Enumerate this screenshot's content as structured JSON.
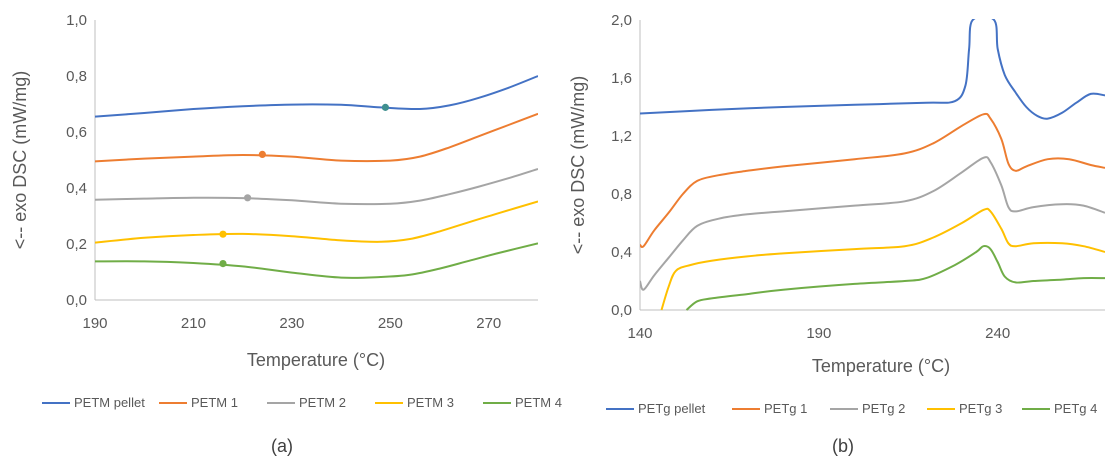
{
  "chart_data": [
    {
      "type": "line",
      "caption": "(a)",
      "xlabel": "Temperature (°C)",
      "ylabel": "<-- exo    DSC (mW/mg)",
      "xlim": [
        190,
        280
      ],
      "ylim": [
        0.0,
        1.0
      ],
      "xticks": [
        "190",
        "210",
        "230",
        "250",
        "270"
      ],
      "yticks": [
        "0,0",
        "0,2",
        "0,4",
        "0,6",
        "0,8",
        "1,0"
      ],
      "legend_position": "bottom",
      "series": [
        {
          "name": "PETM pellet",
          "color": "#4472C4",
          "points": [
            [
              190,
              0.655
            ],
            [
              200,
              0.668
            ],
            [
              210,
              0.682
            ],
            [
              220,
              0.692
            ],
            [
              230,
              0.698
            ],
            [
              240,
              0.697
            ],
            [
              248,
              0.688
            ],
            [
              256,
              0.682
            ],
            [
              262,
              0.695
            ],
            [
              268,
              0.722
            ],
            [
              274,
              0.758
            ],
            [
              280,
              0.8
            ]
          ],
          "marker": [
            249,
            0.688
          ]
        },
        {
          "name": "PETM 1",
          "color": "#ED7D31",
          "points": [
            [
              190,
              0.495
            ],
            [
              200,
              0.505
            ],
            [
              210,
              0.512
            ],
            [
              220,
              0.518
            ],
            [
              230,
              0.512
            ],
            [
              240,
              0.498
            ],
            [
              250,
              0.498
            ],
            [
              256,
              0.512
            ],
            [
              262,
              0.545
            ],
            [
              268,
              0.585
            ],
            [
              274,
              0.625
            ],
            [
              280,
              0.665
            ]
          ],
          "marker": [
            224,
            0.52
          ]
        },
        {
          "name": "PETM 2",
          "color": "#A5A5A5",
          "points": [
            [
              190,
              0.358
            ],
            [
              200,
              0.362
            ],
            [
              210,
              0.365
            ],
            [
              220,
              0.364
            ],
            [
              230,
              0.356
            ],
            [
              240,
              0.344
            ],
            [
              250,
              0.344
            ],
            [
              256,
              0.355
            ],
            [
              262,
              0.378
            ],
            [
              268,
              0.405
            ],
            [
              274,
              0.435
            ],
            [
              280,
              0.468
            ]
          ],
          "marker": [
            221,
            0.365
          ]
        },
        {
          "name": "PETM 3",
          "color": "#FFC000",
          "points": [
            [
              190,
              0.205
            ],
            [
              200,
              0.222
            ],
            [
              210,
              0.232
            ],
            [
              220,
              0.236
            ],
            [
              230,
              0.228
            ],
            [
              240,
              0.213
            ],
            [
              248,
              0.208
            ],
            [
              254,
              0.218
            ],
            [
              260,
              0.245
            ],
            [
              266,
              0.278
            ],
            [
              272,
              0.31
            ],
            [
              280,
              0.352
            ]
          ],
          "marker": [
            216,
            0.235
          ]
        },
        {
          "name": "PETM 4",
          "color": "#70AD47",
          "points": [
            [
              190,
              0.138
            ],
            [
              200,
              0.138
            ],
            [
              210,
              0.132
            ],
            [
              220,
              0.12
            ],
            [
              230,
              0.098
            ],
            [
              240,
              0.08
            ],
            [
              248,
              0.082
            ],
            [
              254,
              0.09
            ],
            [
              260,
              0.112
            ],
            [
              266,
              0.14
            ],
            [
              272,
              0.168
            ],
            [
              280,
              0.202
            ]
          ],
          "marker": [
            216,
            0.13
          ]
        }
      ]
    },
    {
      "type": "line",
      "caption": "(b)",
      "xlabel": "Temperature (°C)",
      "ylabel": "<-- exo    DSC (mW/mg)",
      "xlim": [
        140,
        270
      ],
      "ylim": [
        0.0,
        2.0
      ],
      "xticks": [
        "140",
        "190",
        "240"
      ],
      "yticks": [
        "0,0",
        "0,4",
        "0,8",
        "1,2",
        "1,6",
        "2,0"
      ],
      "legend_position": "bottom",
      "series": [
        {
          "name": "PETg pellet",
          "color": "#4472C4",
          "points": [
            [
              140,
              1.355
            ],
            [
              160,
              1.38
            ],
            [
              180,
              1.4
            ],
            [
              200,
              1.415
            ],
            [
              220,
              1.43
            ],
            [
              228,
              1.44
            ],
            [
              231,
              1.55
            ],
            [
              232,
              1.8
            ],
            [
              233,
              2.0
            ],
            [
              239,
              2.0
            ],
            [
              240,
              1.8
            ],
            [
              242,
              1.62
            ],
            [
              245,
              1.5
            ],
            [
              248,
              1.4
            ],
            [
              251,
              1.34
            ],
            [
              254,
              1.32
            ],
            [
              258,
              1.36
            ],
            [
              262,
              1.43
            ],
            [
              266,
              1.49
            ],
            [
              270,
              1.48
            ]
          ]
        },
        {
          "name": "PETg 1",
          "color": "#ED7D31",
          "points": [
            [
              140,
              0.45
            ],
            [
              141,
              0.44
            ],
            [
              144,
              0.55
            ],
            [
              148,
              0.67
            ],
            [
              152,
              0.8
            ],
            [
              156,
              0.89
            ],
            [
              162,
              0.93
            ],
            [
              170,
              0.96
            ],
            [
              180,
              0.99
            ],
            [
              200,
              1.04
            ],
            [
              214,
              1.08
            ],
            [
              222,
              1.15
            ],
            [
              230,
              1.27
            ],
            [
              236,
              1.35
            ],
            [
              238,
              1.32
            ],
            [
              241,
              1.18
            ],
            [
              243,
              1.01
            ],
            [
              245,
              0.96
            ],
            [
              248,
              0.99
            ],
            [
              254,
              1.04
            ],
            [
              260,
              1.04
            ],
            [
              266,
              1.0
            ],
            [
              270,
              0.98
            ]
          ]
        },
        {
          "name": "PETg 2",
          "color": "#A5A5A5",
          "points": [
            [
              140,
              0.2
            ],
            [
              141,
              0.14
            ],
            [
              144,
              0.24
            ],
            [
              148,
              0.36
            ],
            [
              152,
              0.48
            ],
            [
              156,
              0.58
            ],
            [
              162,
              0.63
            ],
            [
              170,
              0.66
            ],
            [
              180,
              0.68
            ],
            [
              200,
              0.72
            ],
            [
              214,
              0.75
            ],
            [
              222,
              0.82
            ],
            [
              230,
              0.95
            ],
            [
              236,
              1.05
            ],
            [
              238,
              1.02
            ],
            [
              241,
              0.86
            ],
            [
              243,
              0.71
            ],
            [
              245,
              0.68
            ],
            [
              250,
              0.71
            ],
            [
              258,
              0.73
            ],
            [
              264,
              0.72
            ],
            [
              270,
              0.67
            ]
          ]
        },
        {
          "name": "PETg 3",
          "color": "#FFC000",
          "points": [
            [
              146,
              0.0
            ],
            [
              148,
              0.16
            ],
            [
              150,
              0.27
            ],
            [
              154,
              0.31
            ],
            [
              160,
              0.34
            ],
            [
              170,
              0.37
            ],
            [
              180,
              0.39
            ],
            [
              200,
              0.42
            ],
            [
              214,
              0.44
            ],
            [
              222,
              0.5
            ],
            [
              230,
              0.6
            ],
            [
              236,
              0.69
            ],
            [
              238,
              0.68
            ],
            [
              241,
              0.56
            ],
            [
              243,
              0.46
            ],
            [
              245,
              0.44
            ],
            [
              250,
              0.46
            ],
            [
              258,
              0.46
            ],
            [
              264,
              0.44
            ],
            [
              270,
              0.4
            ]
          ]
        },
        {
          "name": "PETg 4",
          "color": "#70AD47",
          "points": [
            [
              153,
              0.0
            ],
            [
              156,
              0.06
            ],
            [
              160,
              0.08
            ],
            [
              170,
              0.11
            ],
            [
              180,
              0.14
            ],
            [
              200,
              0.18
            ],
            [
              214,
              0.2
            ],
            [
              220,
              0.22
            ],
            [
              228,
              0.31
            ],
            [
              234,
              0.4
            ],
            [
              236,
              0.44
            ],
            [
              238,
              0.42
            ],
            [
              240,
              0.33
            ],
            [
              242,
              0.23
            ],
            [
              245,
              0.19
            ],
            [
              250,
              0.2
            ],
            [
              258,
              0.21
            ],
            [
              264,
              0.22
            ],
            [
              270,
              0.22
            ]
          ]
        }
      ]
    }
  ]
}
